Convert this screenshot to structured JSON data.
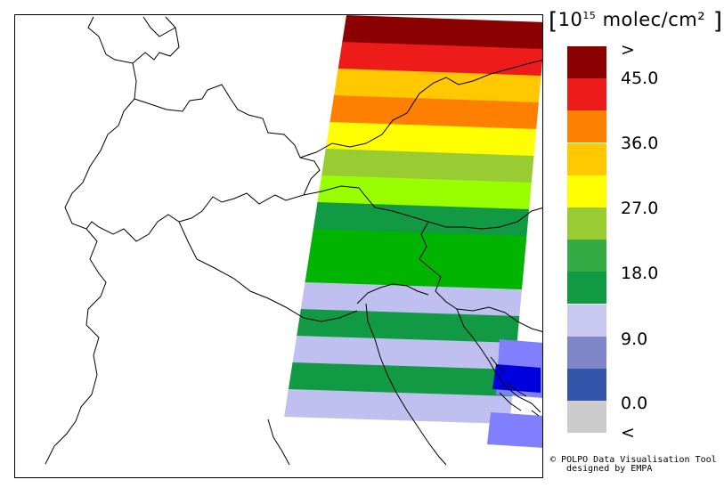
{
  "legend": {
    "unit_prefix": "10",
    "unit_exp": "15",
    "unit_suffix": " molec/cm²",
    "swatches": [
      {
        "color": "#8b0000",
        "name": "above-max"
      },
      {
        "color": "#ee1b1b",
        "name": "40.5-45"
      },
      {
        "color": "#ff7f00",
        "name": "36-40.5"
      },
      {
        "color": "#ffc800",
        "name": "31.5-36"
      },
      {
        "color": "#ffff00",
        "name": "27-31.5"
      },
      {
        "color": "#99cc33",
        "name": "22.5-27"
      },
      {
        "color": "#33aa44",
        "name": "18-22.5"
      },
      {
        "color": "#119944",
        "name": "13.5-18"
      },
      {
        "color": "#c8c8f0",
        "name": "9-13.5"
      },
      {
        "color": "#7f86c8",
        "name": "4.5-9"
      },
      {
        "color": "#3355aa",
        "name": "0-4.5"
      },
      {
        "color": "#cccccc",
        "name": "below-min"
      }
    ],
    "labels": [
      ">",
      "45.0",
      "36.0",
      "27.0",
      "18.0",
      "9.0",
      "0.0",
      "<"
    ]
  },
  "credit": {
    "symbol": "©",
    "line1": " POLPO Data Visualisation Tool",
    "line2": "   designed by EMPA"
  },
  "swath_bands": [
    {
      "color": "#8b0000"
    },
    {
      "color": "#ee1b1b"
    },
    {
      "color": "#ffc800"
    },
    {
      "color": "#ff7f00"
    },
    {
      "color": "#ffff00"
    },
    {
      "color": "#99cc33"
    },
    {
      "color": "#99ff00"
    },
    {
      "color": "#119944"
    },
    {
      "color": "#00b400"
    },
    {
      "color": "#00b400"
    },
    {
      "color": "#c0c0f0"
    },
    {
      "color": "#119944"
    },
    {
      "color": "#c0c0f0"
    },
    {
      "color": "#119944"
    },
    {
      "color": "#c0c0f0"
    }
  ]
}
